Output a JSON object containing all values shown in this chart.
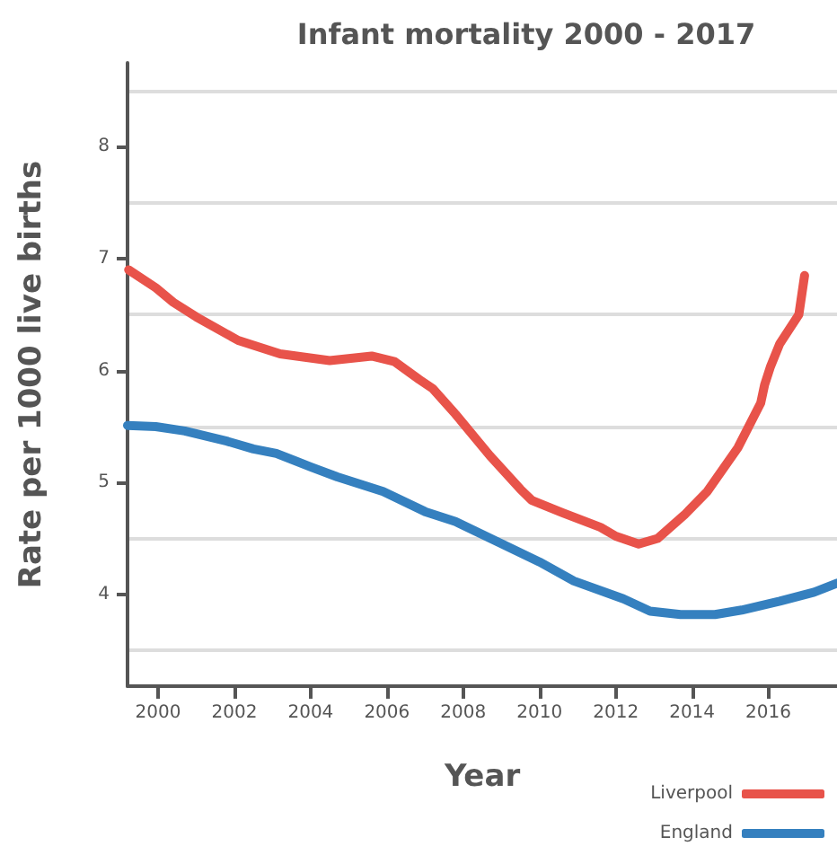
{
  "chart_data": {
    "type": "line",
    "title": "Infant mortality 2000 - 2017",
    "xlabel": "Year",
    "ylabel": "Rate per 1000 live births",
    "xlim": [
      1999.2,
      2017.8
    ],
    "xticks": [
      2000,
      2002,
      2004,
      2006,
      2008,
      2010,
      2012,
      2014,
      2016
    ],
    "ylim": [
      3.18,
      8.75
    ],
    "yticks": [
      {
        "value": 3.5,
        "label": null
      },
      4,
      {
        "value": 4.5,
        "label": null
      },
      5,
      {
        "value": 5.5,
        "label": null
      },
      6,
      {
        "value": 6.5,
        "label": null
      },
      7,
      {
        "value": 7.5,
        "label": null
      },
      8,
      {
        "value": 8.5,
        "label": null
      }
    ],
    "grid": "y",
    "legend": "bottom right",
    "marker": "none",
    "line_style": "solid",
    "series": [
      {
        "name": "Liverpool",
        "color": "#e8534a",
        "x": [
          1999.23,
          1999.94,
          2000.4,
          2001.0,
          2002.1,
          2003.2,
          2004.5,
          2005.6,
          2006.2,
          2006.85,
          2007.2,
          2007.8,
          2008.7,
          2009.5,
          2009.8,
          2010.6,
          2011.6,
          2012.0,
          2012.6,
          2013.1,
          2013.8,
          2014.4,
          2015.2,
          2015.8,
          2015.9,
          2016.05,
          2016.3,
          2016.8,
          2016.95
        ],
        "values": [
          6.9,
          6.74,
          6.61,
          6.48,
          6.27,
          6.15,
          6.09,
          6.13,
          6.08,
          5.92,
          5.84,
          5.61,
          5.24,
          4.94,
          4.84,
          4.73,
          4.6,
          4.52,
          4.45,
          4.5,
          4.71,
          4.92,
          5.31,
          5.71,
          5.87,
          6.03,
          6.24,
          6.5,
          6.85
        ]
      },
      {
        "name": "England",
        "color": "#3580bf",
        "x": [
          1999.2,
          1999.94,
          2000.7,
          2001.8,
          2002.5,
          2003.1,
          2004.0,
          2004.7,
          2005.9,
          2007.0,
          2007.8,
          2008.9,
          2010.0,
          2010.9,
          2012.2,
          2012.9,
          2013.7,
          2014.6,
          2015.3,
          2016.3,
          2017.2,
          2017.8
        ],
        "values": [
          5.51,
          5.5,
          5.46,
          5.37,
          5.3,
          5.26,
          5.14,
          5.05,
          4.92,
          4.74,
          4.65,
          4.47,
          4.29,
          4.12,
          3.96,
          3.85,
          3.82,
          3.82,
          3.86,
          3.94,
          4.02,
          4.1
        ]
      }
    ]
  }
}
